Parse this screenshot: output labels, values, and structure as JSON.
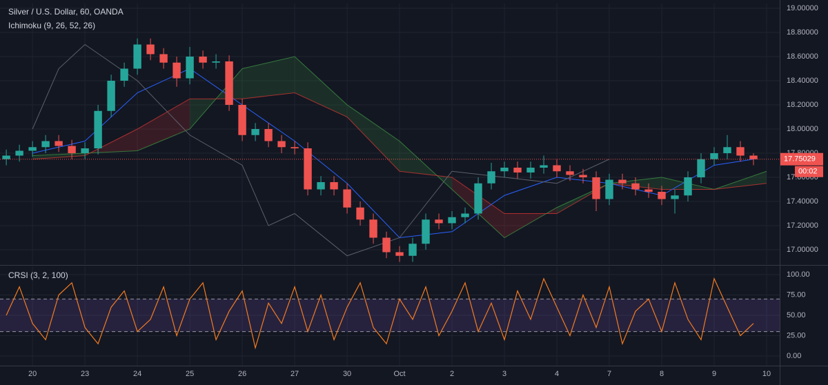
{
  "chart_data": [
    {
      "type": "candlestick",
      "title": "Silver / U.S. Dollar, 60, OANDA",
      "subtitle": "Ichimoku (9, 26, 52, 26)",
      "x": [
        -0.5,
        -0.25,
        0,
        0.25,
        0.5,
        0.75,
        1,
        1.25,
        1.5,
        1.75,
        2,
        2.25,
        2.5,
        2.75,
        3,
        3.25,
        3.5,
        3.75,
        4,
        4.25,
        4.5,
        4.75,
        5,
        5.25,
        5.5,
        5.75,
        6,
        6.25,
        6.5,
        6.75,
        7,
        7.25,
        7.5,
        7.75,
        8,
        8.25,
        8.5,
        8.75,
        9,
        9.25,
        9.5,
        9.75,
        10,
        10.25,
        10.5,
        10.75,
        11,
        11.25,
        11.5,
        11.75,
        12,
        12.25,
        12.5,
        12.75,
        13,
        13.25,
        13.5,
        13.75
      ],
      "open": [
        17.75,
        17.78,
        17.82,
        17.85,
        17.9,
        17.86,
        17.8,
        17.84,
        18.15,
        18.4,
        18.5,
        18.7,
        18.62,
        18.55,
        18.42,
        18.6,
        18.55,
        18.56,
        18.2,
        17.95,
        18.0,
        17.9,
        17.85,
        17.84,
        17.5,
        17.56,
        17.5,
        17.35,
        17.25,
        17.1,
        16.98,
        16.95,
        17.05,
        17.25,
        17.22,
        17.27,
        17.3,
        17.55,
        17.65,
        17.68,
        17.64,
        17.68,
        17.7,
        17.65,
        17.62,
        17.6,
        17.42,
        17.58,
        17.55,
        17.5,
        17.48,
        17.42,
        17.45,
        17.6,
        17.75,
        17.8,
        17.85,
        17.78
      ],
      "high": [
        17.83,
        17.87,
        17.9,
        17.95,
        17.95,
        17.91,
        17.89,
        18.2,
        18.45,
        18.55,
        18.75,
        18.75,
        18.67,
        18.6,
        18.68,
        18.65,
        18.62,
        18.61,
        18.25,
        18.05,
        18.05,
        17.95,
        17.9,
        17.89,
        17.61,
        17.61,
        17.55,
        17.4,
        17.3,
        17.15,
        17.03,
        17.1,
        17.3,
        17.3,
        17.32,
        17.35,
        17.6,
        17.72,
        17.73,
        17.73,
        17.73,
        17.78,
        17.75,
        17.7,
        17.67,
        17.65,
        17.63,
        17.63,
        17.6,
        17.55,
        17.53,
        17.5,
        17.65,
        17.8,
        17.85,
        17.95,
        17.9,
        17.8
      ],
      "low": [
        17.7,
        17.73,
        17.77,
        17.8,
        17.81,
        17.75,
        17.75,
        17.79,
        18.1,
        18.35,
        18.45,
        18.57,
        18.5,
        18.35,
        18.37,
        18.5,
        18.5,
        18.15,
        17.9,
        17.9,
        17.85,
        17.8,
        17.79,
        17.45,
        17.45,
        17.45,
        17.3,
        17.2,
        17.05,
        16.93,
        16.9,
        16.9,
        17.0,
        17.17,
        17.17,
        17.22,
        17.25,
        17.5,
        17.6,
        17.59,
        17.59,
        17.63,
        17.6,
        17.57,
        17.55,
        17.32,
        17.37,
        17.5,
        17.45,
        17.43,
        17.37,
        17.3,
        17.4,
        17.55,
        17.7,
        17.75,
        17.73,
        17.7
      ],
      "close": [
        17.78,
        17.82,
        17.85,
        17.9,
        17.86,
        17.8,
        17.84,
        18.15,
        18.4,
        18.5,
        18.7,
        18.62,
        18.55,
        18.42,
        18.6,
        18.55,
        18.56,
        18.2,
        17.95,
        18.0,
        17.9,
        17.85,
        17.84,
        17.5,
        17.56,
        17.5,
        17.35,
        17.25,
        17.1,
        16.98,
        16.95,
        17.05,
        17.25,
        17.22,
        17.27,
        17.3,
        17.55,
        17.65,
        17.68,
        17.64,
        17.68,
        17.7,
        17.65,
        17.62,
        17.6,
        17.42,
        17.58,
        17.55,
        17.5,
        17.48,
        17.42,
        17.45,
        17.6,
        17.75,
        17.8,
        17.85,
        17.78,
        17.75
      ],
      "up_color": "#26a69a",
      "down_color": "#ef5350",
      "cloud": {
        "x": [
          0,
          1,
          2,
          3,
          4,
          5,
          6,
          7,
          8,
          9,
          10,
          11,
          12,
          13,
          14
        ],
        "span_a": [
          17.78,
          17.8,
          17.82,
          18.0,
          18.5,
          18.6,
          18.2,
          17.9,
          17.5,
          17.1,
          17.35,
          17.55,
          17.6,
          17.5,
          17.65
        ],
        "span_b": [
          17.75,
          17.78,
          18.0,
          18.25,
          18.25,
          18.3,
          18.1,
          17.65,
          17.6,
          17.3,
          17.3,
          17.55,
          17.5,
          17.5,
          17.55
        ],
        "up_color": "#43a047",
        "down_color": "#e53935"
      },
      "lines": [
        {
          "color": "#2962ff",
          "x": [
            0,
            1,
            2,
            3,
            4,
            5,
            6,
            7,
            8,
            9,
            10,
            11,
            12,
            13,
            13.75
          ],
          "values": [
            17.8,
            17.9,
            18.3,
            18.5,
            18.2,
            17.9,
            17.55,
            17.1,
            17.15,
            17.45,
            17.6,
            17.55,
            17.45,
            17.7,
            17.75
          ]
        },
        {
          "color": "#5d606b",
          "x": [
            0,
            0.5,
            1,
            2,
            3,
            4,
            4.5,
            5,
            6,
            7,
            8,
            9,
            10,
            11
          ],
          "values": [
            18.0,
            18.5,
            18.7,
            18.4,
            17.95,
            17.7,
            17.2,
            17.3,
            16.95,
            17.1,
            17.65,
            17.6,
            17.55,
            17.75
          ]
        }
      ],
      "xlim": [
        -0.62,
        14.25
      ],
      "xticks": [
        {
          "value": 0,
          "label": "20"
        },
        {
          "value": 1,
          "label": "23"
        },
        {
          "value": 2,
          "label": "24"
        },
        {
          "value": 3,
          "label": "25"
        },
        {
          "value": 4,
          "label": "26"
        },
        {
          "value": 5,
          "label": "27"
        },
        {
          "value": 6,
          "label": "30"
        },
        {
          "value": 7,
          "label": "Oct"
        },
        {
          "value": 8,
          "label": "2"
        },
        {
          "value": 9,
          "label": "3"
        },
        {
          "value": 10,
          "label": "4"
        },
        {
          "value": 11,
          "label": "7"
        },
        {
          "value": 12,
          "label": "8"
        },
        {
          "value": 13,
          "label": "9"
        },
        {
          "value": 14,
          "label": "10"
        }
      ],
      "ylim": [
        16.88,
        19.04
      ],
      "yticks": [
        {
          "value": 17,
          "label": "17.00000"
        },
        {
          "value": 17.2,
          "label": "17.20000"
        },
        {
          "value": 17.4,
          "label": "17.40000"
        },
        {
          "value": 17.6,
          "label": "17.60000"
        },
        {
          "value": 17.8,
          "label": "17.80000"
        },
        {
          "value": 18,
          "label": "18.00000"
        },
        {
          "value": 18.2,
          "label": "18.20000"
        },
        {
          "value": 18.4,
          "label": "18.40000"
        },
        {
          "value": 18.6,
          "label": "18.60000"
        },
        {
          "value": 18.8,
          "label": "18.80000"
        },
        {
          "value": 19,
          "label": "19.00000"
        }
      ],
      "last_price": 17.75029,
      "countdown": "00:02",
      "grid": true
    },
    {
      "type": "line",
      "title": "CRSI (3, 2, 100)",
      "x": [
        -0.5,
        -0.25,
        0,
        0.25,
        0.5,
        0.75,
        1,
        1.25,
        1.5,
        1.75,
        2,
        2.25,
        2.5,
        2.75,
        3,
        3.25,
        3.5,
        3.75,
        4,
        4.25,
        4.5,
        4.75,
        5,
        5.25,
        5.5,
        5.75,
        6,
        6.25,
        6.5,
        6.75,
        7,
        7.25,
        7.5,
        7.75,
        8,
        8.25,
        8.5,
        8.75,
        9,
        9.25,
        9.5,
        9.75,
        10,
        10.25,
        10.5,
        10.75,
        11,
        11.25,
        11.5,
        11.75,
        12,
        12.25,
        12.5,
        12.75,
        13,
        13.25,
        13.5,
        13.75
      ],
      "values": [
        50,
        85,
        40,
        20,
        75,
        90,
        35,
        15,
        60,
        80,
        30,
        45,
        85,
        25,
        70,
        90,
        20,
        55,
        80,
        10,
        65,
        40,
        85,
        30,
        75,
        20,
        60,
        90,
        35,
        15,
        70,
        45,
        85,
        25,
        55,
        90,
        30,
        65,
        20,
        80,
        45,
        95,
        60,
        25,
        75,
        35,
        85,
        15,
        55,
        70,
        30,
        90,
        45,
        20,
        95,
        60,
        25,
        40
      ],
      "color": "#f57c20",
      "bands": [
        30,
        70
      ],
      "band_color": "#7e57c2",
      "xlim": [
        -0.62,
        14.25
      ],
      "ylim": [
        -11.9,
        110.2
      ],
      "yticks": [
        {
          "value": 0,
          "label": "0.00"
        },
        {
          "value": 25,
          "label": "25.00"
        },
        {
          "value": 50,
          "label": "50.00"
        },
        {
          "value": 75,
          "label": "75.00"
        },
        {
          "value": 100,
          "label": "100.00"
        }
      ],
      "grid": true
    }
  ]
}
